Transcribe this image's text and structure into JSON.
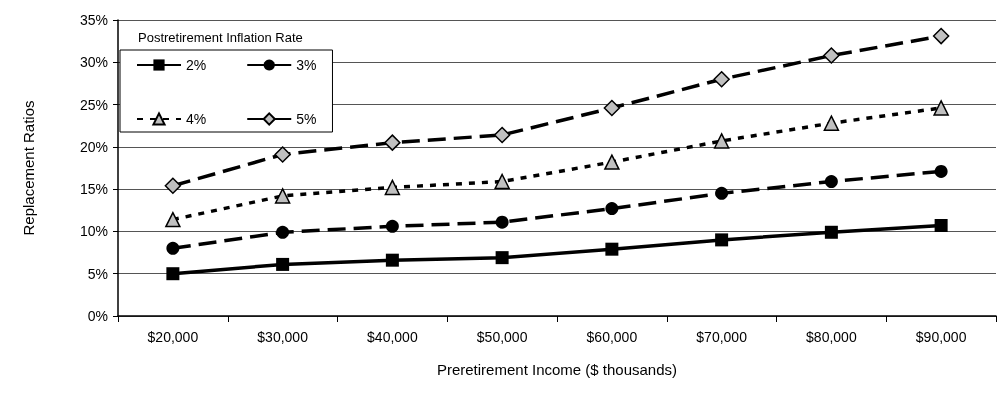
{
  "chart_data": {
    "type": "line",
    "xlabel": "Preretirement Income ($ thousands)",
    "ylabel": "Replacement Ratios",
    "legend_title": "Postretirement Inflation Rate",
    "categories": [
      "$20,000",
      "$30,000",
      "$40,000",
      "$50,000",
      "$60,000",
      "$70,000",
      "$80,000",
      "$90,000"
    ],
    "series": [
      {
        "name": "2%",
        "color": "#000000",
        "marker": "square",
        "line_style": "solid",
        "values": [
          5.0,
          6.1,
          6.6,
          6.9,
          7.9,
          9.0,
          9.9,
          10.7
        ]
      },
      {
        "name": "3%",
        "color": "#000000",
        "marker": "circle",
        "line_style": "dashed",
        "values": [
          8.0,
          9.9,
          10.6,
          11.1,
          12.7,
          14.5,
          15.9,
          17.1
        ]
      },
      {
        "name": "4%",
        "color": "#c0c0c0",
        "marker": "triangle",
        "line_style": "dotted",
        "values": [
          11.4,
          14.2,
          15.2,
          15.9,
          18.2,
          20.7,
          22.8,
          24.6
        ]
      },
      {
        "name": "5%",
        "color": "#c0c0c0",
        "marker": "diamond",
        "line_style": "dashed",
        "values": [
          15.4,
          19.1,
          20.5,
          21.4,
          24.6,
          28.0,
          30.8,
          33.1
        ]
      }
    ],
    "ylim": [
      0,
      35
    ],
    "yticks": [
      {
        "value": 0,
        "label": "0%"
      },
      {
        "value": 5,
        "label": "5%"
      },
      {
        "value": 10,
        "label": "10%"
      },
      {
        "value": 15,
        "label": "15%"
      },
      {
        "value": 20,
        "label": "20%"
      },
      {
        "value": 25,
        "label": "25%"
      },
      {
        "value": 30,
        "label": "30%"
      },
      {
        "value": 35,
        "label": "35%"
      }
    ],
    "grid": "y",
    "legend": "top left"
  }
}
